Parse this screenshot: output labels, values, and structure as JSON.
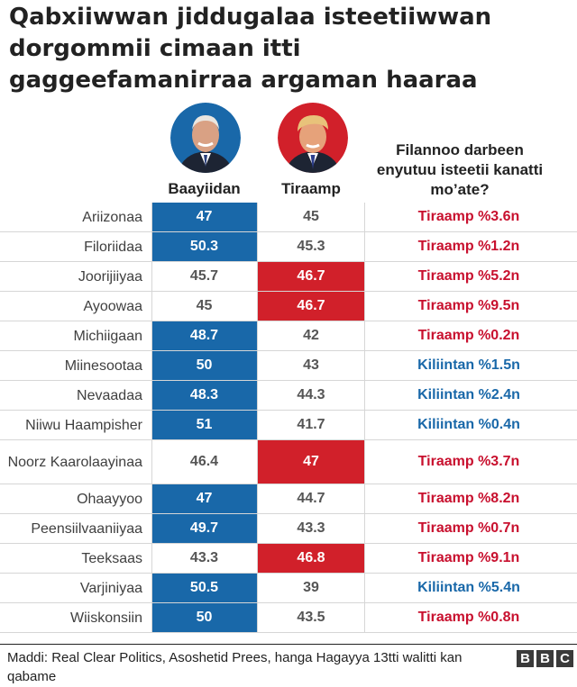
{
  "title": "Qabxiiwwan jiddugalaa isteetiiwwan dorgommii cimaan itti gaggeefamanirraa argaman haaraa",
  "columns": {
    "biden": "Baayiidan",
    "trump": "Tiraamp",
    "margin": "Filannoo darbeen enyutuu isteetii kanatti mo’ate?"
  },
  "colors": {
    "biden": "#1968a9",
    "trump": "#d1202a",
    "biden_text": "#1968a9",
    "trump_text": "#c8102e"
  },
  "avatars": {
    "biden": "biden-portrait-icon",
    "trump": "trump-portrait-icon"
  },
  "chart_data": {
    "type": "table",
    "columns": [
      "",
      "Baayiidan",
      "Tiraamp",
      "Filannoo darbeen enyutuu isteetii kanatti mo’ate?"
    ],
    "rows": [
      {
        "state": "Ariizonaa",
        "biden": "47",
        "trump": "45",
        "margin": "Tiraamp %3.6n",
        "winner": "biden",
        "margin_party": "trump"
      },
      {
        "state": "Filoriidaa",
        "biden": "50.3",
        "trump": "45.3",
        "margin": "Tiraamp %1.2n",
        "winner": "biden",
        "margin_party": "trump"
      },
      {
        "state": "Joorijiiyaa",
        "biden": "45.7",
        "trump": "46.7",
        "margin": "Tiraamp %5.2n",
        "winner": "trump",
        "margin_party": "trump"
      },
      {
        "state": "Ayoowaa",
        "biden": "45",
        "trump": "46.7",
        "margin": "Tiraamp %9.5n",
        "winner": "trump",
        "margin_party": "trump"
      },
      {
        "state": "Michiigaan",
        "biden": "48.7",
        "trump": "42",
        "margin": "Tiraamp %0.2n",
        "winner": "biden",
        "margin_party": "trump"
      },
      {
        "state": "Miinesootaa",
        "biden": "50",
        "trump": "43",
        "margin": "Kiliintan %1.5n",
        "winner": "biden",
        "margin_party": "biden"
      },
      {
        "state": "Nevaadaa",
        "biden": "48.3",
        "trump": "44.3",
        "margin": "Kiliintan %2.4n",
        "winner": "biden",
        "margin_party": "biden"
      },
      {
        "state": "Niiwu Haampisher",
        "biden": "51",
        "trump": "41.7",
        "margin": "Kiliintan %0.4n",
        "winner": "biden",
        "margin_party": "biden"
      },
      {
        "state": "Noorz Kaarolaayinaa",
        "biden": "46.4",
        "trump": "47",
        "margin": "Tiraamp %3.7n",
        "winner": "trump",
        "margin_party": "trump",
        "tall": true
      },
      {
        "state": "Ohaayyoo",
        "biden": "47",
        "trump": "44.7",
        "margin": "Tiraamp %8.2n",
        "winner": "biden",
        "margin_party": "trump"
      },
      {
        "state": "Peensiilvaaniiyaa",
        "biden": "49.7",
        "trump": "43.3",
        "margin": "Tiraamp %0.7n",
        "winner": "biden",
        "margin_party": "trump"
      },
      {
        "state": "Teeksaas",
        "biden": "43.3",
        "trump": "46.8",
        "margin": "Tiraamp %9.1n",
        "winner": "trump",
        "margin_party": "trump"
      },
      {
        "state": "Varjiniyaa",
        "biden": "50.5",
        "trump": "39",
        "margin": "Kiliintan %5.4n",
        "winner": "biden",
        "margin_party": "biden"
      },
      {
        "state": "Wiiskonsiin",
        "biden": "50",
        "trump": "43.5",
        "margin": "Tiraamp %0.8n",
        "winner": "biden",
        "margin_party": "trump"
      }
    ]
  },
  "footer": {
    "source": "Maddi: Real Clear Politics, Asoshetid Prees, hanga Hagayya 13tti walitti kan qabame",
    "logo": [
      "B",
      "B",
      "C"
    ]
  }
}
